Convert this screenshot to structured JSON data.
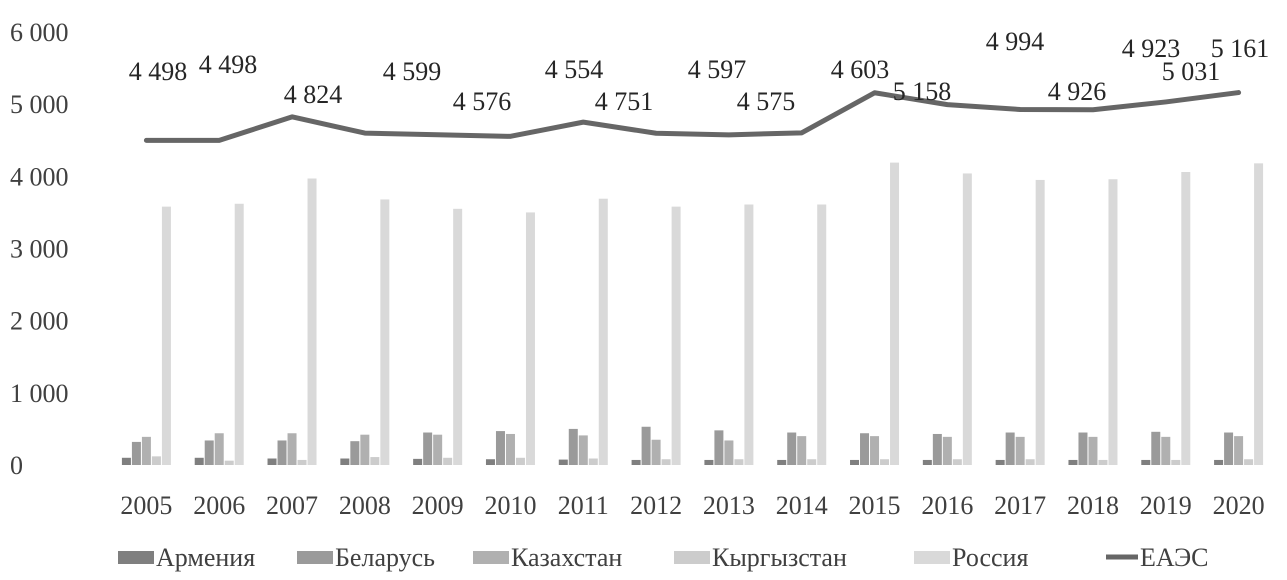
{
  "chart_data": {
    "type": "bar",
    "title": "",
    "xlabel": "",
    "ylabel": "",
    "categories": [
      "2005",
      "2006",
      "2007",
      "2008",
      "2009",
      "2010",
      "2011",
      "2012",
      "2013",
      "2014",
      "2015",
      "2016",
      "2017",
      "2018",
      "2019",
      "2020"
    ],
    "ylim": [
      0,
      6000
    ],
    "yticks": [
      0,
      1000,
      2000,
      3000,
      4000,
      5000,
      6000
    ],
    "ytick_labels": [
      "0",
      "1 000",
      "2 000",
      "3 000",
      "4 000",
      "5 000",
      "6 000"
    ],
    "grid": false,
    "legend_position": "bottom",
    "series": [
      {
        "name": "Армения",
        "type": "bar",
        "color": "#7f7f7f",
        "values": [
          100,
          100,
          90,
          90,
          85,
          80,
          75,
          70,
          70,
          70,
          70,
          70,
          70,
          70,
          70,
          70
        ]
      },
      {
        "name": "Беларусь",
        "type": "bar",
        "color": "#9a9a9a",
        "values": [
          320,
          340,
          340,
          330,
          450,
          470,
          500,
          530,
          480,
          450,
          440,
          430,
          450,
          450,
          460,
          450
        ]
      },
      {
        "name": "Казахстан",
        "type": "bar",
        "color": "#b0b0b0",
        "values": [
          390,
          440,
          440,
          420,
          420,
          430,
          410,
          350,
          340,
          400,
          400,
          390,
          390,
          390,
          390,
          400
        ]
      },
      {
        "name": "Кыргызстан",
        "type": "bar",
        "color": "#cccccc",
        "values": [
          120,
          60,
          70,
          110,
          100,
          100,
          90,
          80,
          80,
          80,
          80,
          80,
          80,
          70,
          70,
          80
        ]
      },
      {
        "name": "Россия",
        "type": "bar",
        "color": "#d9d9d9",
        "values": [
          3580,
          3620,
          3970,
          3680,
          3550,
          3500,
          3690,
          3580,
          3610,
          3610,
          4190,
          4040,
          3950,
          3960,
          4060,
          4180
        ]
      },
      {
        "name": "ЕАЭС",
        "type": "line",
        "color": "#666666",
        "values": [
          4498,
          4498,
          4824,
          4599,
          4576,
          4554,
          4751,
          4597,
          4575,
          4603,
          5158,
          4994,
          4926,
          4923,
          5031,
          5161
        ]
      }
    ],
    "data_labels": [
      "4 498",
      "4 498",
      "4 824",
      "4 599",
      "4 576",
      "4 554",
      "4 751",
      "4 597",
      "4 575",
      "4 603",
      "5 158",
      "4 994",
      "4 926",
      "4 923",
      "5 031",
      "5 161"
    ]
  }
}
